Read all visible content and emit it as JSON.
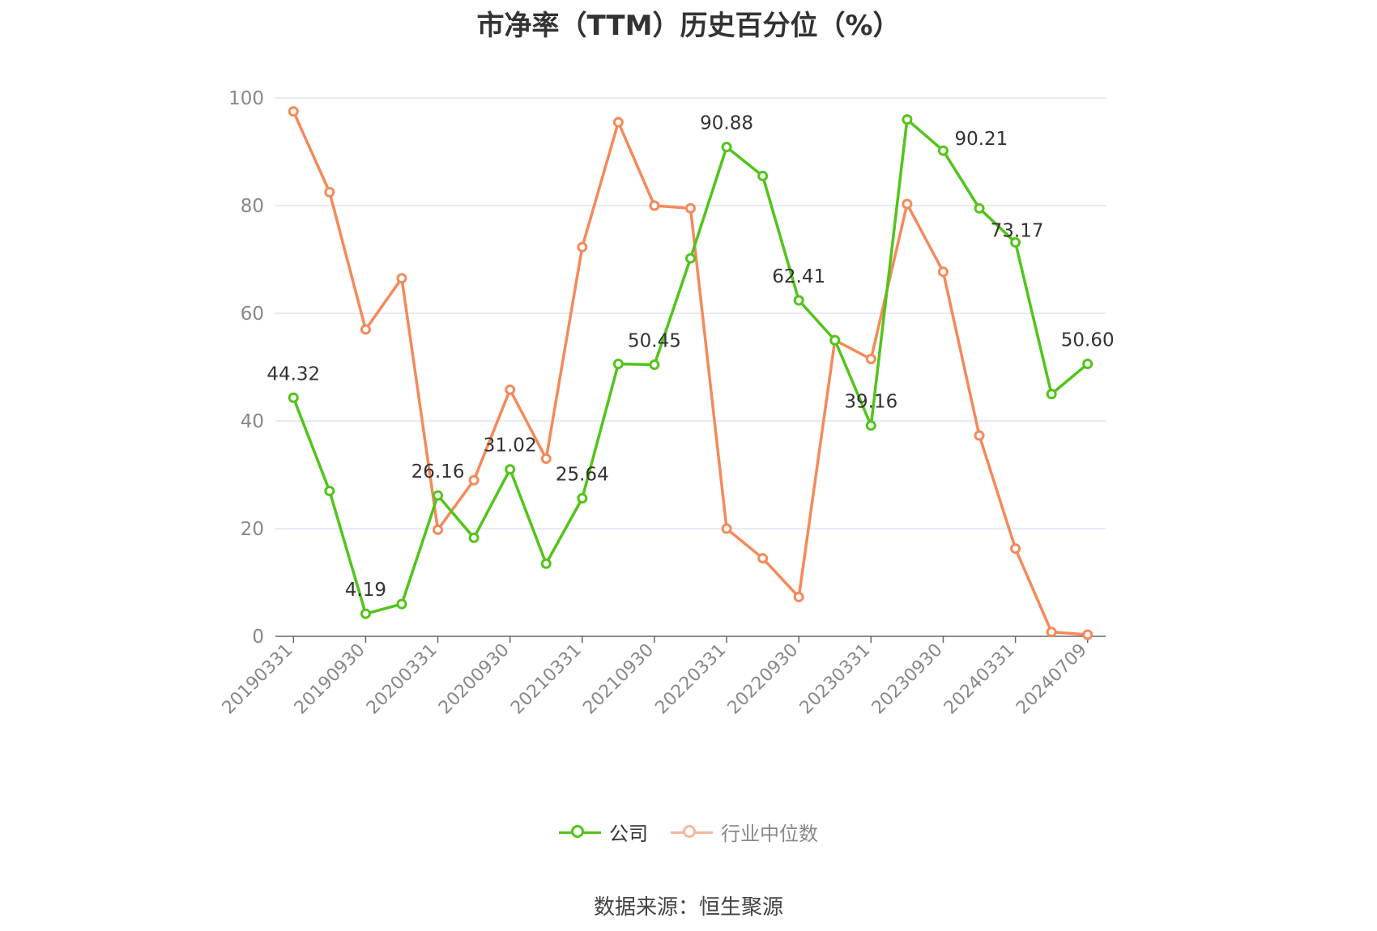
{
  "title": "市净率（TTM）历史百分位（%）",
  "source_text": "数据来源：恒生聚源",
  "colors": {
    "company": "#52c41a",
    "industry": "#f5895a",
    "industry_legend": "#f7b69d",
    "grid": "#dde3f0",
    "axis": "#666666",
    "tick_text": "#888888",
    "label_text": "#333333"
  },
  "chart_data": {
    "type": "line",
    "x": [
      "20190331",
      "20190630",
      "20190930",
      "20191231",
      "20200331",
      "20200630",
      "20200930",
      "20201231",
      "20210331",
      "20210630",
      "20210930",
      "20211231",
      "20220331",
      "20220630",
      "20220930",
      "20221231",
      "20230331",
      "20230630",
      "20230930",
      "20231231",
      "20240331",
      "20240630",
      "20240709"
    ],
    "x_tick_labels": [
      "20190331",
      "20190930",
      "20200331",
      "20200930",
      "20210331",
      "20210930",
      "20220331",
      "20220930",
      "20230331",
      "20230930",
      "20240331",
      "20240709"
    ],
    "y_ticks": [
      "0",
      "20",
      "40",
      "60",
      "80",
      "100"
    ],
    "ylim": [
      0,
      100
    ],
    "grid": true,
    "legend_position": "bottom",
    "series": [
      {
        "name": "公司",
        "values": [
          44.32,
          27.0,
          4.19,
          6.0,
          26.16,
          18.3,
          31.02,
          13.5,
          25.64,
          50.6,
          50.45,
          70.2,
          90.88,
          85.5,
          62.41,
          55.0,
          39.16,
          96.0,
          90.21,
          79.5,
          73.17,
          45.0,
          50.6
        ],
        "labels": [
          "44.32",
          "",
          "4.19",
          "",
          "26.16",
          "",
          "31.02",
          "",
          "25.64",
          "",
          "50.45",
          "",
          "90.88",
          "",
          "62.41",
          "",
          "39.16",
          "",
          "90.21",
          "",
          "73.17",
          "",
          "50.60"
        ]
      },
      {
        "name": "行业中位数",
        "values": [
          97.5,
          82.5,
          57.0,
          66.5,
          19.8,
          29.0,
          45.8,
          33.0,
          72.3,
          95.5,
          80.0,
          79.5,
          20.0,
          14.5,
          7.3,
          55.0,
          51.5,
          80.3,
          67.7,
          37.3,
          16.3,
          0.8,
          0.3
        ]
      }
    ]
  }
}
